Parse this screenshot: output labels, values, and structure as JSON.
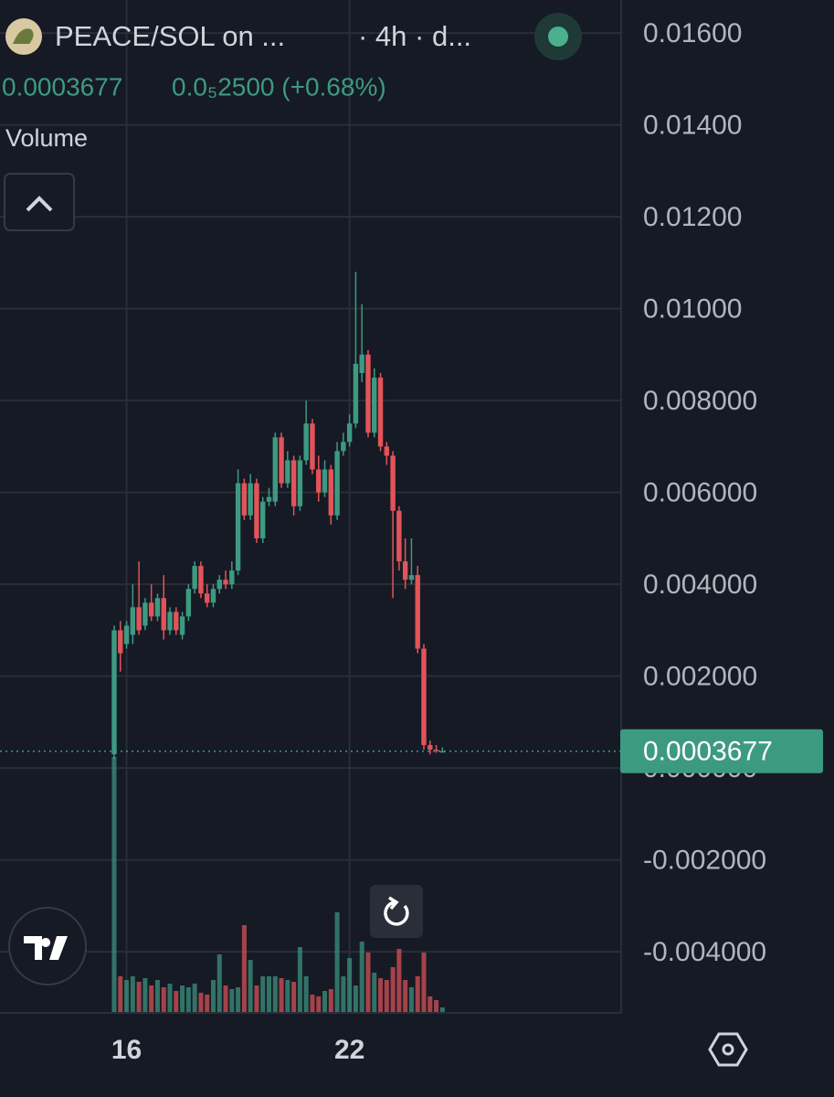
{
  "chart_data": {
    "type": "candlestick",
    "title": "PEACE/SOL on ...",
    "interval": "· 4h · d...",
    "last_price": 0.0003677,
    "change": "0.0₅2500 (+0.68%)",
    "volume_label": "Volume",
    "categories": [
      null,
      null,
      "16",
      null,
      null,
      null,
      null,
      null,
      null,
      null,
      null,
      null,
      null,
      null,
      null,
      null,
      null,
      null,
      null,
      null,
      null,
      null,
      null,
      null,
      null,
      null,
      null,
      null,
      null,
      null,
      null,
      null,
      null,
      null,
      null,
      null,
      null,
      null,
      "22",
      null,
      null,
      null,
      null,
      null,
      null,
      null,
      null,
      null,
      null,
      null,
      null,
      null,
      null,
      null
    ],
    "series": [
      {
        "up_color": "#3d9a82",
        "down_color": "#e2545a",
        "open": [
          0.0003,
          0.003,
          0.0027,
          0.0029,
          0.0035,
          0.0031,
          0.0036,
          0.0033,
          0.0037,
          0.003,
          0.0034,
          0.0029,
          0.0033,
          0.0039,
          0.0044,
          0.0038,
          0.0036,
          0.0039,
          0.0041,
          0.004,
          0.0043,
          0.0062,
          0.0055,
          0.0062,
          0.005,
          0.0058,
          0.0058,
          0.0072,
          0.0062,
          0.0067,
          0.0057,
          0.0067,
          0.0075,
          0.0065,
          0.006,
          0.0065,
          0.0055,
          0.0069,
          0.0071,
          0.0075,
          0.0086,
          0.009,
          0.0073,
          0.0085,
          0.007,
          0.0068,
          0.0056,
          0.0045,
          0.0041,
          0.0042,
          0.0026,
          0.0005,
          0.0004,
          0.00036
        ],
        "high": [
          0.0031,
          0.0032,
          0.0032,
          0.004,
          0.0045,
          0.0037,
          0.004,
          0.0038,
          0.0042,
          0.0035,
          0.0035,
          0.0034,
          0.004,
          0.0045,
          0.0045,
          0.004,
          0.004,
          0.0042,
          0.0043,
          0.0045,
          0.0065,
          0.0063,
          0.0064,
          0.0063,
          0.0059,
          0.0061,
          0.0073,
          0.0073,
          0.0069,
          0.0068,
          0.0068,
          0.008,
          0.0076,
          0.0068,
          0.0067,
          0.0066,
          0.0071,
          0.0073,
          0.0077,
          0.0108,
          0.0101,
          0.0091,
          0.0087,
          0.0086,
          0.0071,
          0.0069,
          0.0057,
          0.005,
          0.005,
          0.0044,
          0.0027,
          0.0006,
          0.0005,
          0.00045
        ],
        "low": [
          0.0002,
          0.0021,
          0.0026,
          0.0027,
          0.0029,
          0.003,
          0.0032,
          0.0032,
          0.0028,
          0.0029,
          0.0029,
          0.0028,
          0.0032,
          0.0038,
          0.0037,
          0.0035,
          0.0035,
          0.0038,
          0.0039,
          0.0039,
          0.0042,
          0.0054,
          0.0054,
          0.0049,
          0.0049,
          0.0057,
          0.0057,
          0.0061,
          0.0061,
          0.0055,
          0.0056,
          0.0066,
          0.0064,
          0.0058,
          0.0059,
          0.0053,
          0.0054,
          0.0068,
          0.007,
          0.0074,
          0.0084,
          0.0072,
          0.0072,
          0.0069,
          0.0066,
          0.0037,
          0.0043,
          0.0039,
          0.004,
          0.0025,
          0.0004,
          0.0003,
          0.00033,
          0.00034
        ],
        "close": [
          0.003,
          0.0025,
          0.0031,
          0.0035,
          0.003,
          0.0036,
          0.0033,
          0.0037,
          0.003,
          0.0034,
          0.003,
          0.0033,
          0.0039,
          0.0044,
          0.0038,
          0.0036,
          0.0039,
          0.0041,
          0.004,
          0.0043,
          0.0062,
          0.0055,
          0.0062,
          0.005,
          0.0058,
          0.0059,
          0.0072,
          0.0062,
          0.0067,
          0.0057,
          0.0067,
          0.0075,
          0.0065,
          0.006,
          0.0065,
          0.0055,
          0.0069,
          0.0071,
          0.0075,
          0.0088,
          0.009,
          0.0073,
          0.0085,
          0.007,
          0.0068,
          0.0056,
          0.0045,
          0.0041,
          0.0042,
          0.0026,
          0.0005,
          0.0004,
          0.00037,
          0.0003677
        ],
        "volume": [
          280,
          40,
          36,
          40,
          34,
          38,
          30,
          36,
          28,
          32,
          24,
          30,
          28,
          32,
          22,
          20,
          36,
          64,
          30,
          26,
          28,
          96,
          58,
          30,
          40,
          40,
          40,
          38,
          36,
          34,
          72,
          40,
          20,
          18,
          24,
          26,
          110,
          40,
          60,
          30,
          78,
          66,
          44,
          38,
          36,
          50,
          70,
          36,
          28,
          40,
          66,
          18,
          14,
          6
        ]
      }
    ],
    "ylim": [
      -0.00533,
      0.01672
    ],
    "yticks": [
      {
        "value": 0.016,
        "label": "0.01600"
      },
      {
        "value": 0.014,
        "label": "0.01400"
      },
      {
        "value": 0.012,
        "label": "0.01200"
      },
      {
        "value": 0.01,
        "label": "0.01000"
      },
      {
        "value": 0.008,
        "label": "0.008000"
      },
      {
        "value": 0.006,
        "label": "0.006000"
      },
      {
        "value": 0.004,
        "label": "0.004000"
      },
      {
        "value": 0.002,
        "label": "0.002000"
      },
      {
        "value": 0,
        "label": "0.000000"
      },
      {
        "value": -0.002,
        "label": "-0.002000"
      },
      {
        "value": -0.004,
        "label": "-0.004000"
      }
    ],
    "grid": true
  }
}
